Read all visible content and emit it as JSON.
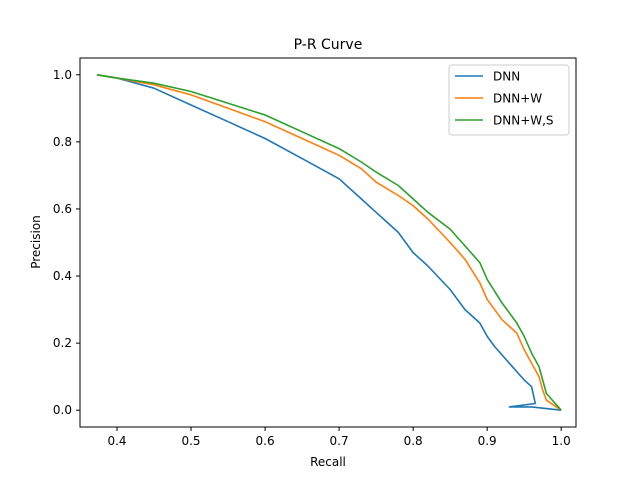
{
  "chart_data": {
    "type": "line",
    "title": "P-R Curve",
    "xlabel": "Recall",
    "ylabel": "Precision",
    "xlim": [
      0.35,
      1.02
    ],
    "ylim": [
      -0.05,
      1.05
    ],
    "xticks": [
      0.4,
      0.5,
      0.6,
      0.7,
      0.8,
      0.9,
      1.0
    ],
    "yticks": [
      0.0,
      0.2,
      0.4,
      0.6,
      0.8,
      1.0
    ],
    "xtick_labels": [
      "0.4",
      "0.5",
      "0.6",
      "0.7",
      "0.8",
      "0.9",
      "1.0"
    ],
    "ytick_labels": [
      "0.0",
      "0.2",
      "0.4",
      "0.6",
      "0.8",
      "1.0"
    ],
    "grid": false,
    "legend_position": "top-right",
    "series": [
      {
        "name": "DNN",
        "color": "#1f77b4",
        "x": [
          0.373,
          0.4,
          0.45,
          0.5,
          0.55,
          0.6,
          0.65,
          0.7,
          0.73,
          0.75,
          0.78,
          0.8,
          0.82,
          0.85,
          0.87,
          0.89,
          0.9,
          0.91,
          0.93,
          0.95,
          0.96,
          0.965,
          0.93,
          0.96,
          0.98,
          1.0
        ],
        "y": [
          1.0,
          0.99,
          0.96,
          0.91,
          0.86,
          0.81,
          0.75,
          0.69,
          0.63,
          0.59,
          0.53,
          0.47,
          0.43,
          0.36,
          0.3,
          0.26,
          0.22,
          0.19,
          0.14,
          0.09,
          0.07,
          0.02,
          0.01,
          0.01,
          0.005,
          0.0
        ]
      },
      {
        "name": "DNN+W",
        "color": "#ff7f0e",
        "x": [
          0.373,
          0.4,
          0.45,
          0.5,
          0.55,
          0.6,
          0.65,
          0.7,
          0.73,
          0.75,
          0.78,
          0.8,
          0.82,
          0.85,
          0.87,
          0.89,
          0.9,
          0.92,
          0.94,
          0.95,
          0.96,
          0.97,
          0.975,
          0.98,
          1.0
        ],
        "y": [
          1.0,
          0.99,
          0.97,
          0.94,
          0.9,
          0.86,
          0.81,
          0.76,
          0.72,
          0.68,
          0.64,
          0.61,
          0.57,
          0.5,
          0.45,
          0.38,
          0.33,
          0.27,
          0.23,
          0.18,
          0.14,
          0.1,
          0.06,
          0.03,
          0.0
        ]
      },
      {
        "name": "DNN+W,S",
        "color": "#2ca02c",
        "x": [
          0.373,
          0.4,
          0.45,
          0.5,
          0.55,
          0.6,
          0.65,
          0.7,
          0.73,
          0.75,
          0.78,
          0.8,
          0.82,
          0.85,
          0.87,
          0.89,
          0.9,
          0.92,
          0.94,
          0.95,
          0.96,
          0.97,
          0.975,
          0.98,
          1.0
        ],
        "y": [
          1.0,
          0.99,
          0.975,
          0.95,
          0.915,
          0.88,
          0.83,
          0.78,
          0.74,
          0.71,
          0.67,
          0.63,
          0.59,
          0.54,
          0.49,
          0.44,
          0.39,
          0.32,
          0.26,
          0.22,
          0.17,
          0.13,
          0.09,
          0.05,
          0.0
        ]
      }
    ]
  }
}
